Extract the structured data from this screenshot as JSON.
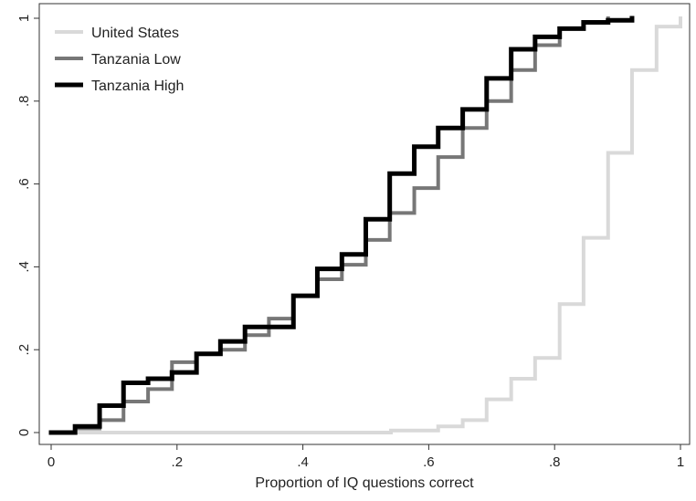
{
  "chart_data": {
    "type": "line",
    "step": true,
    "title": "",
    "xlabel": "Proportion of IQ questions correct",
    "ylabel": "",
    "xlim": [
      0,
      1
    ],
    "ylim": [
      0,
      1
    ],
    "x_ticks": [
      0,
      0.2,
      0.4,
      0.6,
      0.8,
      1
    ],
    "x_tick_labels": [
      "0",
      ".2",
      ".4",
      ".6",
      ".8",
      "1"
    ],
    "y_ticks": [
      0,
      0.2,
      0.4,
      0.6,
      0.8,
      1
    ],
    "y_tick_labels": [
      "0",
      ".2",
      ".4",
      ".6",
      ".8",
      "1"
    ],
    "grid": false,
    "legend_position": "top-left",
    "series": [
      {
        "name": "United States",
        "color": "#d9d9d9",
        "points": [
          [
            0,
            0
          ],
          [
            0.54,
            0.005
          ],
          [
            0.615,
            0.015
          ],
          [
            0.654,
            0.03
          ],
          [
            0.692,
            0.08
          ],
          [
            0.731,
            0.13
          ],
          [
            0.769,
            0.18
          ],
          [
            0.808,
            0.31
          ],
          [
            0.846,
            0.47
          ],
          [
            0.885,
            0.675
          ],
          [
            0.923,
            0.875
          ],
          [
            0.962,
            0.98
          ],
          [
            1,
            1
          ]
        ]
      },
      {
        "name": "Tanzania Low",
        "color": "#777777",
        "points": [
          [
            0,
            0
          ],
          [
            0.038,
            0.01
          ],
          [
            0.077,
            0.03
          ],
          [
            0.115,
            0.075
          ],
          [
            0.154,
            0.105
          ],
          [
            0.192,
            0.17
          ],
          [
            0.231,
            0.19
          ],
          [
            0.269,
            0.2
          ],
          [
            0.308,
            0.235
          ],
          [
            0.346,
            0.275
          ],
          [
            0.385,
            0.33
          ],
          [
            0.423,
            0.37
          ],
          [
            0.462,
            0.405
          ],
          [
            0.5,
            0.465
          ],
          [
            0.538,
            0.53
          ],
          [
            0.577,
            0.59
          ],
          [
            0.615,
            0.665
          ],
          [
            0.654,
            0.735
          ],
          [
            0.692,
            0.8
          ],
          [
            0.731,
            0.875
          ],
          [
            0.769,
            0.935
          ],
          [
            0.808,
            0.975
          ],
          [
            0.846,
            0.99
          ],
          [
            0.885,
            1
          ]
        ]
      },
      {
        "name": "Tanzania High",
        "color": "#000000",
        "points": [
          [
            0,
            0
          ],
          [
            0.038,
            0.015
          ],
          [
            0.077,
            0.065
          ],
          [
            0.115,
            0.12
          ],
          [
            0.154,
            0.13
          ],
          [
            0.192,
            0.145
          ],
          [
            0.231,
            0.19
          ],
          [
            0.269,
            0.22
          ],
          [
            0.308,
            0.255
          ],
          [
            0.346,
            0.255
          ],
          [
            0.385,
            0.33
          ],
          [
            0.423,
            0.395
          ],
          [
            0.462,
            0.43
          ],
          [
            0.5,
            0.515
          ],
          [
            0.538,
            0.625
          ],
          [
            0.577,
            0.69
          ],
          [
            0.615,
            0.735
          ],
          [
            0.654,
            0.78
          ],
          [
            0.692,
            0.855
          ],
          [
            0.731,
            0.925
          ],
          [
            0.769,
            0.955
          ],
          [
            0.808,
            0.975
          ],
          [
            0.846,
            0.99
          ],
          [
            0.885,
            0.995
          ],
          [
            0.923,
            1
          ]
        ]
      }
    ]
  }
}
